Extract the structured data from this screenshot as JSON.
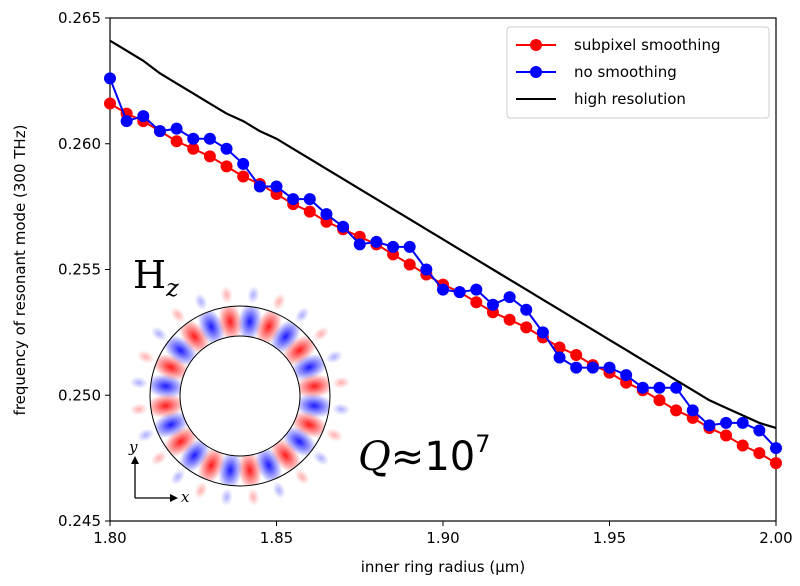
{
  "chart_data": {
    "type": "line",
    "title": "",
    "xlabel": "inner ring radius (μm)",
    "ylabel": "frequency of resonant mode (300 THz)",
    "xlim": [
      1.8,
      2.0
    ],
    "ylim": [
      0.245,
      0.265
    ],
    "xticks": [
      "1.80",
      "1.85",
      "1.90",
      "1.95",
      "2.00"
    ],
    "yticks": [
      "0.245",
      "0.250",
      "0.255",
      "0.260",
      "0.265"
    ],
    "grid": false,
    "legend_position": "top-right",
    "x": [
      1.8,
      1.805,
      1.81,
      1.815,
      1.82,
      1.825,
      1.83,
      1.835,
      1.84,
      1.845,
      1.85,
      1.855,
      1.86,
      1.865,
      1.87,
      1.875,
      1.88,
      1.885,
      1.89,
      1.895,
      1.9,
      1.905,
      1.91,
      1.915,
      1.92,
      1.925,
      1.93,
      1.935,
      1.94,
      1.945,
      1.95,
      1.955,
      1.96,
      1.965,
      1.97,
      1.975,
      1.98,
      1.985,
      1.99,
      1.995,
      2.0
    ],
    "series": [
      {
        "name": "subpixel smoothing",
        "color": "#ff0000",
        "marker": "circle",
        "values": [
          0.2616,
          0.2612,
          0.2609,
          0.2605,
          0.2601,
          0.2598,
          0.2595,
          0.2591,
          0.2587,
          0.2584,
          0.258,
          0.2576,
          0.2573,
          0.2569,
          0.2566,
          0.2563,
          0.256,
          0.2556,
          0.2552,
          0.2548,
          0.2544,
          0.2541,
          0.2537,
          0.2533,
          0.253,
          0.2527,
          0.2523,
          0.2519,
          0.2516,
          0.2512,
          0.2509,
          0.2505,
          0.2502,
          0.2498,
          0.2494,
          0.2491,
          0.2487,
          0.2484,
          0.248,
          0.2477,
          0.2473
        ]
      },
      {
        "name": "no smoothing",
        "color": "#0000ff",
        "marker": "circle",
        "values": [
          0.2626,
          0.2609,
          0.2611,
          0.2605,
          0.2606,
          0.2602,
          0.2602,
          0.2598,
          0.2592,
          0.2583,
          0.2583,
          0.2578,
          0.2578,
          0.2572,
          0.2567,
          0.256,
          0.2561,
          0.2559,
          0.2559,
          0.255,
          0.2542,
          0.2541,
          0.2542,
          0.2536,
          0.2539,
          0.2534,
          0.2525,
          0.2515,
          0.2511,
          0.2511,
          0.2511,
          0.2508,
          0.2503,
          0.2503,
          0.2503,
          0.2494,
          0.2488,
          0.2489,
          0.2489,
          0.2486,
          0.2479
        ]
      },
      {
        "name": "high resolution",
        "color": "#000000",
        "marker": "none",
        "values": [
          0.2641,
          0.2637,
          0.2633,
          0.2628,
          0.2624,
          0.262,
          0.2616,
          0.2612,
          0.2609,
          0.2605,
          0.2602,
          0.2598,
          0.2594,
          0.259,
          0.2586,
          0.2582,
          0.2578,
          0.2574,
          0.257,
          0.2566,
          0.2562,
          0.2558,
          0.2554,
          0.255,
          0.2546,
          0.2542,
          0.2538,
          0.2534,
          0.253,
          0.2526,
          0.2522,
          0.2518,
          0.2514,
          0.251,
          0.2506,
          0.2502,
          0.2498,
          0.2495,
          0.2492,
          0.2489,
          0.2487
        ]
      }
    ],
    "annotations": {
      "field_label": "H",
      "field_subscript": "z",
      "q_symbol": "Q",
      "q_relation": "≈10",
      "q_exponent": "7",
      "axis_x": "x",
      "axis_y": "y"
    }
  }
}
